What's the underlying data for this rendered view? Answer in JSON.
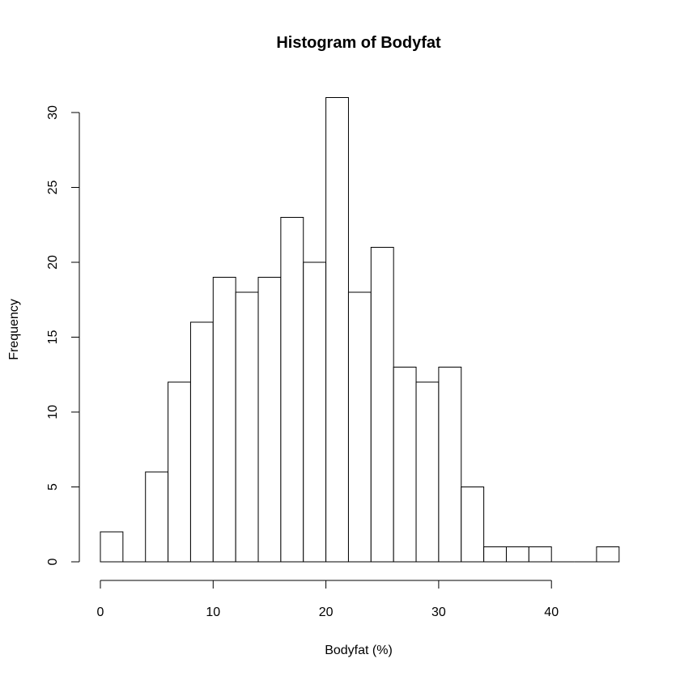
{
  "chart_data": {
    "type": "bar",
    "title": "Histogram of Bodyfat",
    "xlabel": "Bodyfat (%)",
    "ylabel": "Frequency",
    "bin_width": 2,
    "bins": [
      {
        "start": 0,
        "end": 2,
        "count": 2
      },
      {
        "start": 2,
        "end": 4,
        "count": 0
      },
      {
        "start": 4,
        "end": 6,
        "count": 6
      },
      {
        "start": 6,
        "end": 8,
        "count": 12
      },
      {
        "start": 8,
        "end": 10,
        "count": 16
      },
      {
        "start": 10,
        "end": 12,
        "count": 19
      },
      {
        "start": 12,
        "end": 14,
        "count": 18
      },
      {
        "start": 14,
        "end": 16,
        "count": 19
      },
      {
        "start": 16,
        "end": 18,
        "count": 23
      },
      {
        "start": 18,
        "end": 20,
        "count": 20
      },
      {
        "start": 20,
        "end": 22,
        "count": 31
      },
      {
        "start": 22,
        "end": 24,
        "count": 18
      },
      {
        "start": 24,
        "end": 26,
        "count": 21
      },
      {
        "start": 26,
        "end": 28,
        "count": 13
      },
      {
        "start": 28,
        "end": 30,
        "count": 12
      },
      {
        "start": 30,
        "end": 32,
        "count": 13
      },
      {
        "start": 32,
        "end": 34,
        "count": 5
      },
      {
        "start": 34,
        "end": 36,
        "count": 1
      },
      {
        "start": 36,
        "end": 38,
        "count": 1
      },
      {
        "start": 38,
        "end": 40,
        "count": 1
      },
      {
        "start": 40,
        "end": 42,
        "count": 0
      },
      {
        "start": 42,
        "end": 44,
        "count": 0
      },
      {
        "start": 44,
        "end": 46,
        "count": 1
      }
    ],
    "xlim": [
      0,
      46
    ],
    "ylim": [
      0,
      31
    ],
    "x_ticks": [
      0,
      10,
      20,
      30,
      40
    ],
    "y_ticks": [
      0,
      5,
      10,
      15,
      20,
      25,
      30
    ],
    "grid": false,
    "colors": {
      "bar_fill": "#ffffff",
      "bar_stroke": "#000000"
    }
  }
}
